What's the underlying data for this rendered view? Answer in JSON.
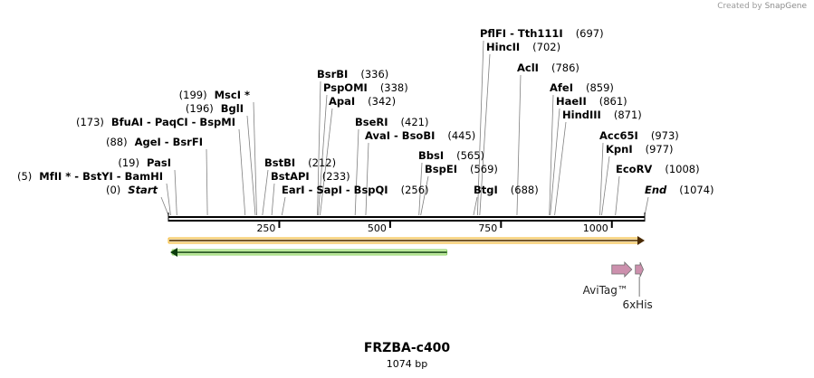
{
  "credit": {
    "prefix": "Created by",
    "brand": "SnapGene"
  },
  "map": {
    "name": "FRZBA-c400",
    "length_label": "1074 bp",
    "length": 1074,
    "ticks": [
      {
        "value": 250,
        "label": "250"
      },
      {
        "value": 500,
        "label": "500"
      },
      {
        "value": 750,
        "label": "750"
      },
      {
        "value": 1000,
        "label": "1000"
      }
    ]
  },
  "sites": [
    {
      "pos": 0,
      "label": "Start",
      "italic": true,
      "num": "(0)",
      "numSide": "left"
    },
    {
      "pos": 5,
      "label": "MfII * - BstYI - BamHI",
      "num": "(5)",
      "numSide": "left"
    },
    {
      "pos": 19,
      "label": "PasI",
      "num": "(19)",
      "numSide": "left"
    },
    {
      "pos": 88,
      "label": "AgeI - BsrFI",
      "num": "(88)",
      "numSide": "left"
    },
    {
      "pos": 173,
      "label": "BfuAI - PaqCI - BspMI",
      "num": "(173)",
      "numSide": "left"
    },
    {
      "pos": 196,
      "label": "BglI",
      "num": "(196)",
      "numSide": "left"
    },
    {
      "pos": 199,
      "label": "MscI *",
      "num": "(199)",
      "numSide": "left"
    },
    {
      "pos": 212,
      "label": "BstBI",
      "num": "(212)",
      "numSide": "right"
    },
    {
      "pos": 233,
      "label": "BstAPI",
      "num": "(233)",
      "numSide": "right"
    },
    {
      "pos": 256,
      "label": "EarI - SapI - BspQI",
      "num": "(256)",
      "numSide": "right"
    },
    {
      "pos": 336,
      "label": "BsrBI",
      "num": "(336)",
      "numSide": "right"
    },
    {
      "pos": 338,
      "label": "PspOMI",
      "num": "(338)",
      "numSide": "right"
    },
    {
      "pos": 342,
      "label": "ApaI",
      "num": "(342)",
      "numSide": "right"
    },
    {
      "pos": 421,
      "label": "BseRI",
      "num": "(421)",
      "numSide": "right"
    },
    {
      "pos": 445,
      "label": "AvaI - BsoBI",
      "num": "(445)",
      "numSide": "right"
    },
    {
      "pos": 565,
      "label": "BbsI",
      "num": "(565)",
      "numSide": "right"
    },
    {
      "pos": 569,
      "label": "BspEI",
      "num": "(569)",
      "numSide": "right"
    },
    {
      "pos": 688,
      "label": "BtgI",
      "num": "(688)",
      "numSide": "right"
    },
    {
      "pos": 697,
      "label": "PflFI - Tth111I",
      "num": "(697)",
      "numSide": "right"
    },
    {
      "pos": 702,
      "label": "HincII",
      "num": "(702)",
      "numSide": "right"
    },
    {
      "pos": 786,
      "label": "AclI",
      "num": "(786)",
      "numSide": "right"
    },
    {
      "pos": 859,
      "label": "AfeI",
      "num": "(859)",
      "numSide": "right"
    },
    {
      "pos": 861,
      "label": "HaeII",
      "num": "(861)",
      "numSide": "right"
    },
    {
      "pos": 871,
      "label": "HindIII",
      "num": "(871)",
      "numSide": "right"
    },
    {
      "pos": 973,
      "label": "Acc65I",
      "num": "(973)",
      "numSide": "right"
    },
    {
      "pos": 977,
      "label": "KpnI",
      "num": "(977)",
      "numSide": "right"
    },
    {
      "pos": 1008,
      "label": "EcoRV",
      "num": "(1008)",
      "numSide": "right"
    },
    {
      "pos": 1074,
      "label": "End",
      "italic": true,
      "num": "(1074)",
      "numSide": "right"
    }
  ],
  "features": [
    {
      "name": "orf-forward",
      "label": "",
      "start": 0,
      "end": 1074,
      "direction": "forward",
      "color": "#f5b82e"
    },
    {
      "name": "orf-reverse",
      "label": "",
      "start": 0,
      "end": 628,
      "direction": "reverse",
      "color": "#2f9a2f"
    },
    {
      "name": "avitag",
      "label": "AviTag™",
      "start": 1000,
      "end": 1045,
      "direction": "forward",
      "color": "#cc90ad"
    },
    {
      "name": "6xhis",
      "label": "6xHis",
      "start": 1053,
      "end": 1071,
      "direction": "forward",
      "color": "#cc90ad"
    }
  ],
  "colors": {
    "backbone": "#000000",
    "site_line": "#808080",
    "feature_outline": "#6e6e6e"
  }
}
